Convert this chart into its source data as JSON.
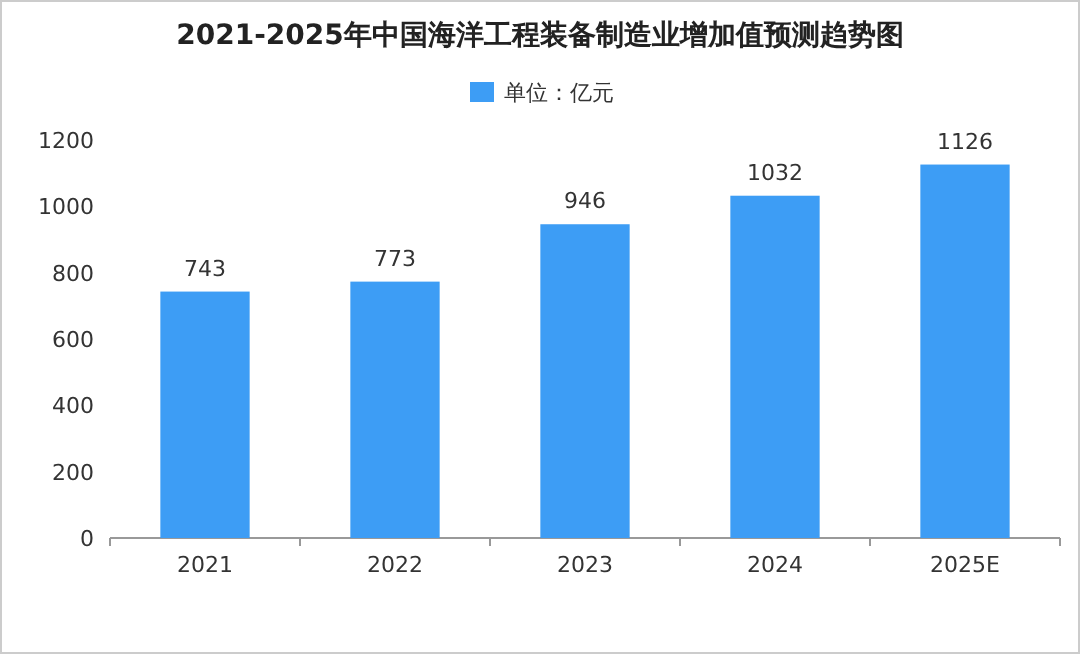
{
  "chart_data": {
    "type": "bar",
    "title": "2021-2025年中国海洋工程装备制造业增加值预测趋势图",
    "categories": [
      "2021",
      "2022",
      "2023",
      "2024",
      "2025E"
    ],
    "series": [
      {
        "name": "单位：亿元",
        "color": "#3d9df5",
        "values": [
          743,
          773,
          946,
          1032,
          1126
        ]
      }
    ],
    "ylim": [
      0,
      1200
    ],
    "yticks": [
      0,
      200,
      400,
      600,
      800,
      1000,
      1200
    ],
    "grid": false,
    "legend": "top",
    "data_labels": true
  }
}
